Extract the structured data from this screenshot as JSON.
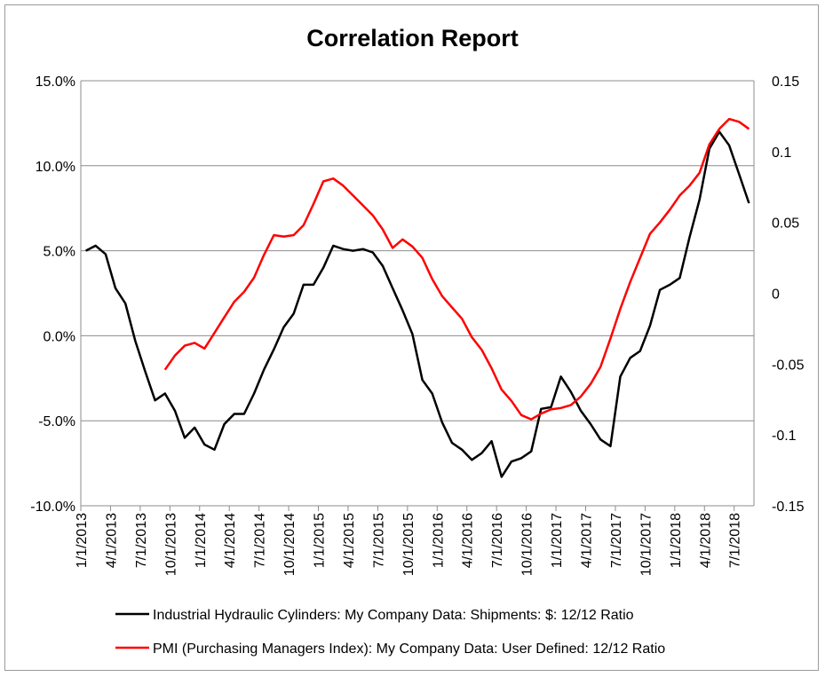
{
  "chart_data": {
    "type": "line",
    "title": "Correlation Report",
    "x": [
      "1/1/2013",
      "2/1/2013",
      "3/1/2013",
      "4/1/2013",
      "5/1/2013",
      "6/1/2013",
      "7/1/2013",
      "8/1/2013",
      "9/1/2013",
      "10/1/2013",
      "11/1/2013",
      "12/1/2013",
      "1/1/2014",
      "2/1/2014",
      "3/1/2014",
      "4/1/2014",
      "5/1/2014",
      "6/1/2014",
      "7/1/2014",
      "8/1/2014",
      "9/1/2014",
      "10/1/2014",
      "11/1/2014",
      "12/1/2014",
      "1/1/2015",
      "2/1/2015",
      "3/1/2015",
      "4/1/2015",
      "5/1/2015",
      "6/1/2015",
      "7/1/2015",
      "8/1/2015",
      "9/1/2015",
      "10/1/2015",
      "11/1/2015",
      "12/1/2015",
      "1/1/2016",
      "2/1/2016",
      "3/1/2016",
      "4/1/2016",
      "5/1/2016",
      "6/1/2016",
      "7/1/2016",
      "8/1/2016",
      "9/1/2016",
      "10/1/2016",
      "11/1/2016",
      "12/1/2016",
      "1/1/2017",
      "2/1/2017",
      "3/1/2017",
      "4/1/2017",
      "5/1/2017",
      "6/1/2017",
      "7/1/2017",
      "8/1/2017",
      "9/1/2017",
      "10/1/2017",
      "11/1/2017",
      "12/1/2017",
      "1/1/2018",
      "2/1/2018",
      "3/1/2018",
      "4/1/2018",
      "5/1/2018",
      "6/1/2018",
      "7/1/2018",
      "8/1/2018"
    ],
    "x_tick_labels": [
      "1/1/2013",
      "4/1/2013",
      "7/1/2013",
      "10/1/2013",
      "1/1/2014",
      "4/1/2014",
      "7/1/2014",
      "10/1/2014",
      "1/1/2015",
      "4/1/2015",
      "7/1/2015",
      "10/1/2015",
      "1/1/2016",
      "4/1/2016",
      "7/1/2016",
      "10/1/2016",
      "1/1/2017",
      "4/1/2017",
      "7/1/2017",
      "10/1/2017",
      "1/1/2018",
      "4/1/2018",
      "7/1/2018"
    ],
    "y_left": {
      "min": -10,
      "max": 15,
      "step": 5,
      "tick_labels": [
        "-10.0%",
        "-5.0%",
        "0.0%",
        "5.0%",
        "10.0%",
        "15.0%"
      ]
    },
    "y_right": {
      "min": -0.15,
      "max": 0.15,
      "step": 0.05,
      "tick_labels": [
        "-0.15",
        "-0.1",
        "-0.05",
        "0",
        "0.05",
        "0.1",
        "0.15"
      ]
    },
    "grid": "horizontal",
    "legend_position": "bottom",
    "series": [
      {
        "name": "Industrial Hydraulic Cylinders: My Company Data: Shipments: $: 12/12 Ratio",
        "axis": "left",
        "color": "#000000",
        "values": [
          5.0,
          5.3,
          4.8,
          2.8,
          1.9,
          -0.3,
          -2.1,
          -3.8,
          -3.4,
          -4.4,
          -6.0,
          -5.4,
          -6.4,
          -6.7,
          -5.2,
          -4.6,
          -4.6,
          -3.4,
          -2.0,
          -0.8,
          0.5,
          1.3,
          3.0,
          3.0,
          4.0,
          5.3,
          5.1,
          5.0,
          5.1,
          4.9,
          4.1,
          2.8,
          1.5,
          0.1,
          -2.6,
          -3.4,
          -5.1,
          -6.3,
          -6.7,
          -7.3,
          -6.9,
          -6.2,
          -8.3,
          -7.4,
          -7.2,
          -6.8,
          -4.3,
          -4.2,
          -2.4,
          -3.3,
          -4.4,
          -5.2,
          -6.1,
          -6.5,
          -2.4,
          -1.3,
          -0.9,
          0.6,
          2.7,
          3.0,
          3.4,
          5.8,
          8.0,
          11.0,
          12.0,
          11.2,
          9.5,
          7.8
        ]
      },
      {
        "name": "PMI (Purchasing Managers Index): My Company Data: User Defined: 12/12 Ratio",
        "axis": "right",
        "color": "#ff0000",
        "values": [
          null,
          null,
          null,
          null,
          null,
          null,
          null,
          null,
          -0.054,
          -0.044,
          -0.037,
          -0.035,
          -0.039,
          -0.028,
          -0.017,
          -0.006,
          0.001,
          0.011,
          0.027,
          0.041,
          0.04,
          0.041,
          0.048,
          0.063,
          0.079,
          0.081,
          0.076,
          0.069,
          0.062,
          0.055,
          0.045,
          0.032,
          0.038,
          0.033,
          0.025,
          0.01,
          -0.002,
          -0.01,
          -0.018,
          -0.031,
          -0.04,
          -0.053,
          -0.068,
          -0.076,
          -0.086,
          -0.089,
          -0.085,
          -0.082,
          -0.081,
          -0.079,
          -0.073,
          -0.064,
          -0.052,
          -0.032,
          -0.011,
          0.008,
          0.025,
          0.042,
          0.05,
          0.059,
          0.069,
          0.076,
          0.085,
          0.105,
          0.116,
          0.123,
          0.121,
          0.116
        ]
      }
    ]
  }
}
